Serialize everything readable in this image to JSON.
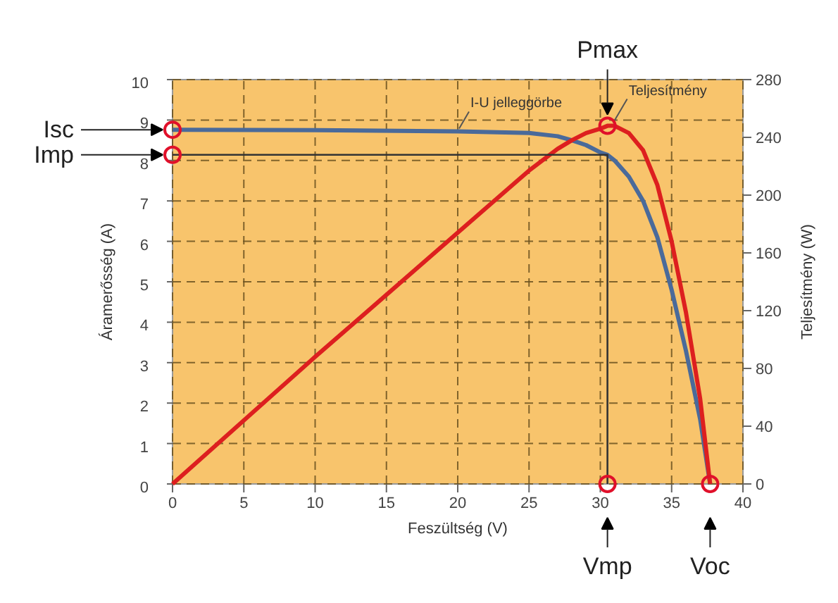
{
  "chart_data": {
    "type": "line",
    "xlabel": "Feszültség (V)",
    "ylabel": "Áramerősség (A)",
    "y2label": "Teljesítmény (W)",
    "xlim": [
      0,
      40
    ],
    "xticks": [
      0,
      5,
      10,
      15,
      20,
      25,
      30,
      35,
      40
    ],
    "ylim": [
      0,
      10
    ],
    "yticks": [
      0,
      1,
      2,
      3,
      4,
      5,
      6,
      7,
      8,
      9,
      10
    ],
    "y2lim": [
      0,
      280
    ],
    "y2ticks": [
      0,
      40,
      80,
      120,
      160,
      200,
      240,
      280
    ],
    "grid": true,
    "legend": false,
    "line_style": "solid",
    "series": [
      {
        "name": "I-U jelleggörbe",
        "color": "#4a6a9a",
        "x": [
          0,
          10,
          20,
          25,
          27,
          28,
          29,
          30,
          30.5,
          31,
          32,
          33,
          34,
          35,
          36,
          37,
          37.7
        ],
        "values": [
          8.76,
          8.75,
          8.72,
          8.68,
          8.6,
          8.5,
          8.38,
          8.2,
          8.14,
          8.0,
          7.6,
          7.0,
          6.1,
          4.8,
          3.3,
          1.6,
          0
        ]
      },
      {
        "name": "Teljesítmény",
        "color": "#dd1f1f",
        "axis": "y2",
        "x": [
          0,
          10,
          20,
          25,
          27,
          28,
          29,
          30,
          30.5,
          31,
          32,
          33,
          34,
          35,
          36,
          37,
          37.7
        ],
        "values": [
          0,
          88,
          174,
          217,
          232,
          238,
          243,
          246,
          248,
          248,
          243,
          231,
          207,
          168,
          119,
          59,
          0
        ]
      },
      {
        "color": "#333333",
        "x": [
          0,
          30.5,
          30.5
        ],
        "values": [
          8.14,
          8.14,
          0
        ]
      }
    ],
    "annotations": [
      {
        "text": "Isc",
        "x": 0,
        "y": 8.76
      },
      {
        "text": "Imp",
        "x": 0,
        "y": 8.14
      },
      {
        "text": "Pmax",
        "x": 30.5,
        "y": 8.86
      },
      {
        "text": "Vmp",
        "x": 30.5,
        "y": 0
      },
      {
        "text": "Voc",
        "x": 37.7,
        "y": 0
      }
    ]
  }
}
